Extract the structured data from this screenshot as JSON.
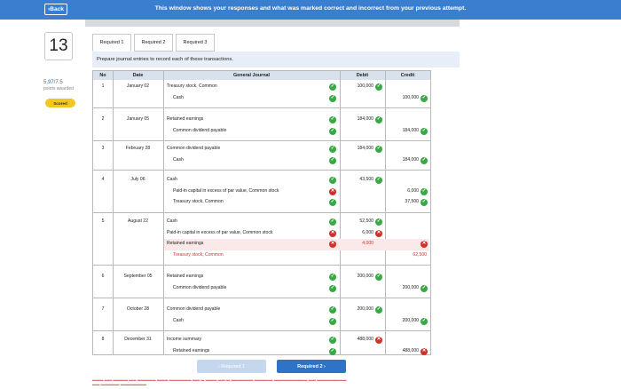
{
  "topbar": {
    "back_label": "‹Back",
    "banner": "This window shows your responses and what was marked correct and incorrect from your previous attempt."
  },
  "question": {
    "number": "13",
    "score": "5.97/7.5",
    "points_label": "points awarded",
    "status": "Scored"
  },
  "tabs": [
    "Required 1",
    "Required 2",
    "Required 3"
  ],
  "instruction": "Prepare journal entries to record each of these transactions.",
  "table": {
    "headers": {
      "no": "No",
      "date": "Date",
      "journal": "General Journal",
      "debit": "Debit",
      "credit": "Credit"
    },
    "entries": [
      {
        "no": "1",
        "date": "January 02",
        "lines": [
          {
            "account": "Treasury stock, Common",
            "status": "ok",
            "debit": "100,000",
            "debit_status": "ok"
          },
          {
            "account": "Cash",
            "status": "ok",
            "credit": "100,000",
            "credit_status": "ok"
          }
        ]
      },
      {
        "no": "2",
        "date": "January 05",
        "lines": [
          {
            "account": "Retained earnings",
            "status": "ok",
            "debit": "184,000",
            "debit_status": "ok"
          },
          {
            "account": "Common dividend payable",
            "status": "ok",
            "credit": "184,000",
            "credit_status": "ok"
          }
        ]
      },
      {
        "no": "3",
        "date": "February 28",
        "lines": [
          {
            "account": "Common dividend payable",
            "status": "ok",
            "debit": "184,000",
            "debit_status": "ok"
          },
          {
            "account": "Cash",
            "status": "ok",
            "credit": "184,000",
            "credit_status": "ok"
          }
        ]
      },
      {
        "no": "4",
        "date": "July 06",
        "lines": [
          {
            "account": "Cash",
            "status": "ok",
            "debit": "43,500",
            "debit_status": "ok"
          },
          {
            "account": "Paid-in capital in excess of par value, Common stock",
            "status": "bad",
            "credit": "6,000",
            "credit_status": "ok"
          },
          {
            "account": "Treasury stock, Common",
            "status": "ok",
            "credit": "37,500",
            "credit_status": "ok"
          }
        ]
      },
      {
        "no": "5",
        "date": "August 22",
        "lines": [
          {
            "account": "Cash",
            "status": "ok",
            "debit": "52,500",
            "debit_status": "ok"
          },
          {
            "account": "Paid-in capital in excess of par value, Common stock",
            "status": "bad",
            "debit": "6,000",
            "debit_status": "bad"
          },
          {
            "account": "Retained earnings",
            "status": "bad",
            "debit": "4,000",
            "debit_red": true,
            "credit_status": "bad",
            "pink": true
          },
          {
            "account": "Treasury stock, Common",
            "status": "none",
            "red": true,
            "credit": "62,500",
            "credit_red": true
          }
        ]
      },
      {
        "no": "6",
        "date": "September 05",
        "lines": [
          {
            "account": "Retained earnings",
            "status": "ok",
            "debit": "200,000",
            "debit_status": "ok"
          },
          {
            "account": "Common dividend payable",
            "status": "ok",
            "credit": "200,000",
            "credit_status": "ok"
          }
        ]
      },
      {
        "no": "7",
        "date": "October 28",
        "lines": [
          {
            "account": "Common dividend payable",
            "status": "ok",
            "debit": "200,000",
            "debit_status": "ok"
          },
          {
            "account": "Cash",
            "status": "ok",
            "credit": "200,000",
            "credit_status": "ok"
          }
        ]
      },
      {
        "no": "8",
        "date": "December 31",
        "lines": [
          {
            "account": "Income summary",
            "status": "ok",
            "debit": "488,000",
            "debit_status": "bad"
          },
          {
            "account": "Retained earnings",
            "status": "ok",
            "credit": "488,000",
            "credit_status": "bad"
          }
        ]
      }
    ]
  },
  "nav": {
    "prev_label": "‹  Required 1",
    "next_label": "Required 2  ›"
  },
  "colors": {
    "topbar": "#3a7fcf",
    "correct": "#3aa845",
    "incorrect": "#d0312d",
    "scored_badge": "#f3c623"
  }
}
